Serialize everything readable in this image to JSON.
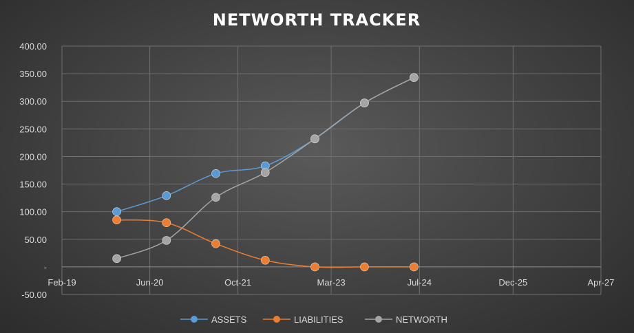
{
  "chart_data": {
    "type": "line",
    "title": "NETWORTH TRACKER",
    "x_axis_type": "date",
    "x": [
      "2019-12-01",
      "2020-09-01",
      "2021-06-01",
      "2022-03-01",
      "2022-12-01",
      "2023-09-01",
      "2024-06-01"
    ],
    "x_range": [
      "2019-02-01",
      "2027-04-01"
    ],
    "x_tick_dates": [
      "2019-02-01",
      "2020-06-01",
      "2021-10-01",
      "2023-03-01",
      "2024-07-01",
      "2025-12-01",
      "2027-04-01"
    ],
    "x_tick_labels": [
      "Feb-19",
      "Jun-20",
      "Oct-21",
      "Mar-23",
      "Jul-24",
      "Dec-25",
      "Apr-27"
    ],
    "ylim": [
      -50,
      400
    ],
    "y_ticks": [
      -50,
      0,
      50,
      100,
      150,
      200,
      250,
      300,
      350,
      400
    ],
    "y_tick_labels": [
      "-50.00",
      "-",
      "50.00",
      "100.00",
      "150.00",
      "200.00",
      "250.00",
      "300.00",
      "350.00",
      "400.00"
    ],
    "grid": true,
    "legend_position": "bottom",
    "smooth": true,
    "series": [
      {
        "name": "ASSETS",
        "color": "#5b9bd5",
        "values": [
          100,
          129,
          169,
          183,
          232,
          297,
          343
        ]
      },
      {
        "name": "LIABILITIES",
        "color": "#ed7d31",
        "values": [
          85,
          80,
          42,
          12,
          0,
          0,
          0
        ]
      },
      {
        "name": "NETWORTH",
        "color": "#a5a5a5",
        "values": [
          15,
          48,
          126,
          171,
          232,
          297,
          343
        ]
      }
    ]
  }
}
